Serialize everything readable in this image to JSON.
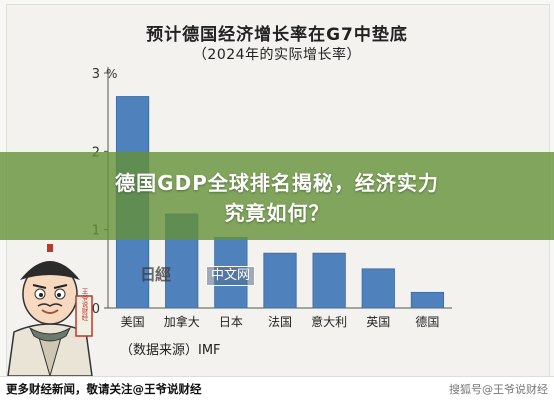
{
  "chart_data": {
    "type": "bar",
    "title": "预计德国经济增长率在G7中垫底",
    "subtitle": "（2024年的实际增长率）",
    "y_unit": "%",
    "ylim": [
      0,
      3
    ],
    "yticks": [
      "0",
      "1",
      "2",
      "3"
    ],
    "categories": [
      "美国",
      "加拿大",
      "日本",
      "法国",
      "意大利",
      "英国",
      "德国"
    ],
    "values": [
      2.7,
      1.2,
      0.9,
      0.7,
      0.7,
      0.5,
      0.2
    ],
    "bar_color": "#4f81bd",
    "source": "（数据来源）IMF",
    "grid": false
  },
  "overlay": {
    "headline_line1": "德国GDP全球排名揭秘，经济实力",
    "headline_line2": "究竟如何？",
    "band_color": "#649137"
  },
  "watermark": {
    "logo_text": "日經",
    "text": "中文网"
  },
  "cartoon": {
    "seal_text": "王爷说财经"
  },
  "footer": {
    "text": "更多财经新闻，敬请关注@王爷说财经",
    "right_text": "搜狐号@王爷说财经"
  }
}
